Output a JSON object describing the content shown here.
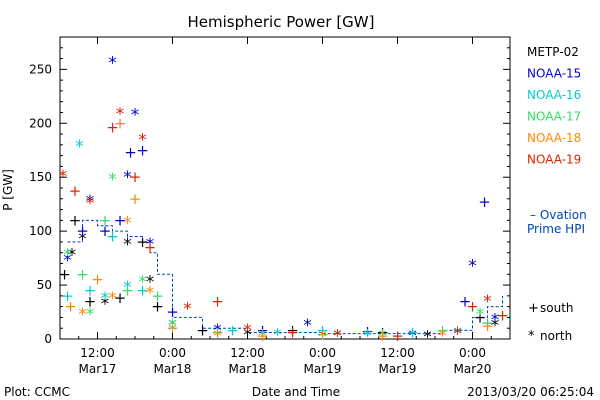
{
  "chart_data": {
    "type": "scatter",
    "title": "Hemispheric Power [GW]",
    "ylabel": "P [GW]",
    "xlabel": "Date and Time",
    "ylim": [
      0,
      280
    ],
    "yticks": [
      0,
      50,
      100,
      150,
      200,
      250
    ],
    "xlim": [
      0.25,
      3.25
    ],
    "x_unit": "days since 2013-03-17 00:00 UT",
    "xticks": [
      {
        "x": 0.5,
        "time": "12:00",
        "date": "Mar17"
      },
      {
        "x": 1.0,
        "time": "0:00",
        "date": "Mar18"
      },
      {
        "x": 1.5,
        "time": "12:00",
        "date": "Mar18"
      },
      {
        "x": 2.0,
        "time": "0:00",
        "date": "Mar19"
      },
      {
        "x": 2.5,
        "time": "12:00",
        "date": "Mar19"
      },
      {
        "x": 3.0,
        "time": "0:00",
        "date": "Mar20"
      }
    ],
    "grid": false,
    "legend_position": "right",
    "series": [
      {
        "name": "METP-02",
        "color": "#000000",
        "values": [
          [
            0.28,
            60
          ],
          [
            0.33,
            80
          ],
          [
            0.35,
            110
          ],
          [
            0.4,
            95
          ],
          [
            0.45,
            35
          ],
          [
            0.55,
            35
          ],
          [
            0.65,
            38
          ],
          [
            0.7,
            90
          ],
          [
            0.8,
            90
          ],
          [
            0.85,
            55
          ],
          [
            0.9,
            30
          ],
          [
            1.0,
            15
          ],
          [
            1.2,
            8
          ],
          [
            1.5,
            6
          ],
          [
            1.8,
            8
          ],
          [
            2.1,
            5
          ],
          [
            2.4,
            6
          ],
          [
            2.7,
            4
          ],
          [
            3.05,
            20
          ],
          [
            3.15,
            15
          ]
        ]
      },
      {
        "name": "NOAA-15",
        "color": "#0000cc",
        "values": [
          [
            0.3,
            75
          ],
          [
            0.4,
            100
          ],
          [
            0.45,
            130
          ],
          [
            0.55,
            100
          ],
          [
            0.6,
            258
          ],
          [
            0.65,
            110
          ],
          [
            0.7,
            152
          ],
          [
            0.72,
            173
          ],
          [
            0.75,
            210
          ],
          [
            0.8,
            175
          ],
          [
            0.85,
            90
          ],
          [
            1.0,
            25
          ],
          [
            1.3,
            10
          ],
          [
            1.6,
            8
          ],
          [
            1.9,
            15
          ],
          [
            2.3,
            7
          ],
          [
            2.6,
            5
          ],
          [
            2.95,
            35
          ],
          [
            3.0,
            70
          ],
          [
            3.08,
            127
          ],
          [
            3.15,
            20
          ]
        ]
      },
      {
        "name": "NOAA-16",
        "color": "#00cccc",
        "values": [
          [
            0.3,
            40
          ],
          [
            0.38,
            181
          ],
          [
            0.45,
            45
          ],
          [
            0.55,
            40
          ],
          [
            0.6,
            95
          ],
          [
            0.7,
            50
          ],
          [
            0.8,
            45
          ],
          [
            1.0,
            10
          ],
          [
            1.4,
            8
          ],
          [
            1.7,
            6
          ],
          [
            2.0,
            8
          ],
          [
            2.3,
            5
          ],
          [
            2.6,
            6
          ],
          [
            2.9,
            8
          ],
          [
            3.1,
            15
          ]
        ]
      },
      {
        "name": "NOAA-17",
        "color": "#33dd66",
        "values": [
          [
            0.3,
            80
          ],
          [
            0.4,
            60
          ],
          [
            0.45,
            25
          ],
          [
            0.55,
            110
          ],
          [
            0.6,
            150
          ],
          [
            0.7,
            45
          ],
          [
            0.8,
            55
          ],
          [
            0.9,
            40
          ],
          [
            1.0,
            15
          ],
          [
            1.3,
            6
          ],
          [
            1.6,
            5
          ],
          [
            2.0,
            4
          ],
          [
            2.4,
            5
          ],
          [
            2.8,
            8
          ],
          [
            3.05,
            25
          ]
        ]
      },
      {
        "name": "NOAA-18",
        "color": "#ff8800",
        "values": [
          [
            0.32,
            30
          ],
          [
            0.4,
            25
          ],
          [
            0.5,
            55
          ],
          [
            0.6,
            40
          ],
          [
            0.65,
            200
          ],
          [
            0.7,
            110
          ],
          [
            0.75,
            130
          ],
          [
            0.85,
            45
          ],
          [
            1.0,
            10
          ],
          [
            1.3,
            5
          ],
          [
            1.6,
            3
          ],
          [
            2.0,
            4
          ],
          [
            2.4,
            3
          ],
          [
            2.8,
            5
          ],
          [
            3.1,
            12
          ]
        ]
      },
      {
        "name": "NOAA-19",
        "color": "#dd2200",
        "values": [
          [
            0.27,
            153
          ],
          [
            0.35,
            137
          ],
          [
            0.45,
            128
          ],
          [
            0.6,
            196
          ],
          [
            0.65,
            211
          ],
          [
            0.75,
            150
          ],
          [
            0.8,
            187
          ],
          [
            0.85,
            85
          ],
          [
            1.1,
            30
          ],
          [
            1.3,
            35
          ],
          [
            1.5,
            10
          ],
          [
            1.8,
            6
          ],
          [
            2.1,
            5
          ],
          [
            2.5,
            3
          ],
          [
            2.9,
            7
          ],
          [
            3.0,
            30
          ],
          [
            3.1,
            37
          ],
          [
            3.2,
            22
          ]
        ]
      }
    ],
    "ovation": {
      "label_line1": "– Ovation",
      "label_line2": "Prime HPI",
      "color": "#0044bb",
      "x": [
        0.3,
        0.4,
        0.5,
        0.6,
        0.7,
        0.8,
        0.85,
        0.9,
        1.0,
        1.2,
        1.5,
        2.0,
        2.5,
        2.8,
        3.0,
        3.1,
        3.2
      ],
      "values": [
        90,
        110,
        105,
        100,
        95,
        90,
        80,
        60,
        20,
        10,
        6,
        5,
        5,
        8,
        20,
        30,
        40
      ]
    },
    "marker_legend": [
      {
        "symbol": "+",
        "label": "south"
      },
      {
        "symbol": "*",
        "label": "north"
      }
    ],
    "footer_left": "Plot: CCMC",
    "footer_right": "2013/03/20 06:25:04"
  }
}
